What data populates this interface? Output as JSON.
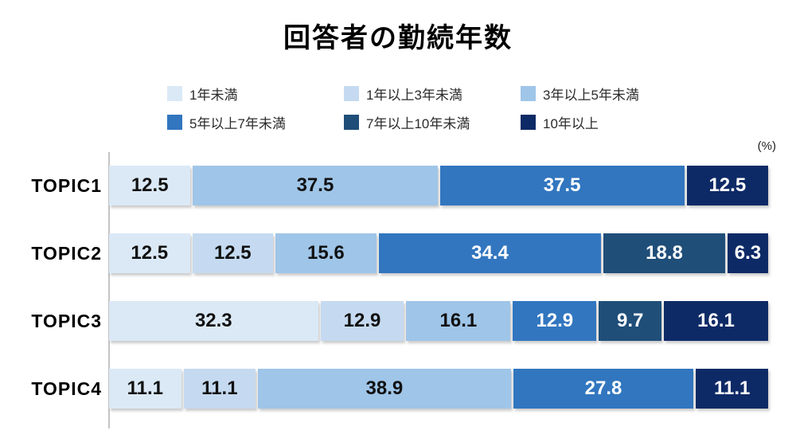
{
  "title": "回答者の勤続年数",
  "unit_label": "(%)",
  "chart_data": {
    "type": "bar",
    "orientation": "horizontal",
    "stacked": true,
    "title": "回答者の勤続年数",
    "unit": "%",
    "xlim": [
      0,
      100
    ],
    "legend_position": "top",
    "value_labels": true,
    "categories": [
      "TOPIC1",
      "TOPIC2",
      "TOPIC3",
      "TOPIC4"
    ],
    "legend": [
      {
        "label": "1年未満",
        "color": "#dbe9f6",
        "text_color": "#111111"
      },
      {
        "label": "1年以上3年未満",
        "color": "#c5daf0",
        "text_color": "#111111"
      },
      {
        "label": "3年以上5年未満",
        "color": "#9fc5e8",
        "text_color": "#111111"
      },
      {
        "label": "5年以上7年未満",
        "color": "#3276bf",
        "text_color": "#ffffff"
      },
      {
        "label": "7年以上10年未満",
        "color": "#1f4e79",
        "text_color": "#ffffff"
      },
      {
        "label": "10年以上",
        "color": "#0e2a66",
        "text_color": "#ffffff"
      }
    ],
    "series": [
      {
        "name": "1年未満",
        "values": [
          12.5,
          12.5,
          32.3,
          11.1
        ]
      },
      {
        "name": "1年以上3年未満",
        "values": [
          0,
          12.5,
          12.9,
          11.1
        ]
      },
      {
        "name": "3年以上5年未満",
        "values": [
          37.5,
          15.6,
          16.1,
          38.9
        ]
      },
      {
        "name": "5年以上7年未満",
        "values": [
          37.5,
          34.4,
          12.9,
          27.8
        ]
      },
      {
        "name": "7年以上10年未満",
        "values": [
          0,
          18.8,
          9.7,
          0
        ]
      },
      {
        "name": "10年以上",
        "values": [
          12.5,
          6.3,
          16.1,
          11.1
        ]
      }
    ]
  }
}
